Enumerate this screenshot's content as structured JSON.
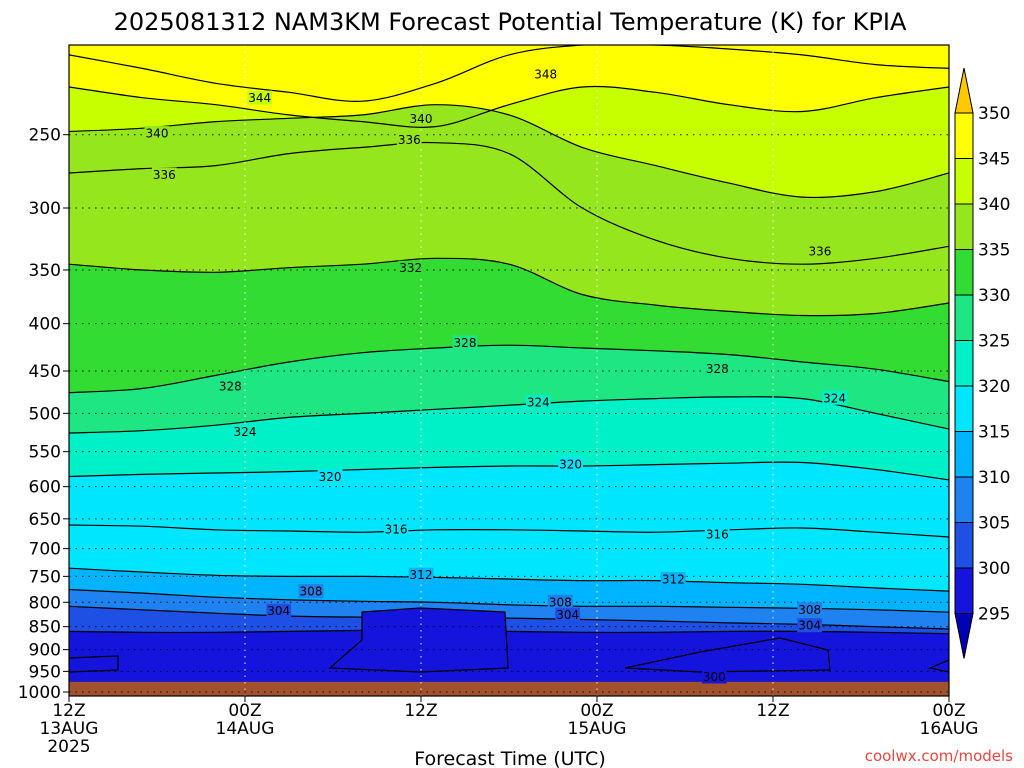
{
  "chart_data": {
    "type": "heatmap",
    "title": "2025081312 NAM3KM Forecast Potential Temperature (K) for KPIA",
    "xlabel": "Forecast Time (UTC)",
    "credit": "coolwx.com/models",
    "y_axis_reversed": true,
    "y_ticks": [
      "250",
      "300",
      "350",
      "400",
      "450",
      "500",
      "550",
      "600",
      "650",
      "700",
      "750",
      "800",
      "850",
      "900",
      "950",
      "1000"
    ],
    "y_tick_values": [
      250,
      300,
      350,
      400,
      450,
      500,
      550,
      600,
      650,
      700,
      750,
      800,
      850,
      900,
      950,
      1000
    ],
    "x_ticks": [
      {
        "hour": 0,
        "line1": "12Z",
        "line2": "13AUG",
        "line3": "2025"
      },
      {
        "hour": 12,
        "line1": "00Z",
        "line2": "14AUG",
        "line3": ""
      },
      {
        "hour": 24,
        "line1": "12Z",
        "line2": "",
        "line3": ""
      },
      {
        "hour": 36,
        "line1": "00Z",
        "line2": "15AUG",
        "line3": ""
      },
      {
        "hour": 48,
        "line1": "12Z",
        "line2": "",
        "line3": ""
      },
      {
        "hour": 60,
        "line1": "00Z",
        "line2": "16AUG",
        "line3": ""
      }
    ],
    "xlim_hours": [
      0,
      60
    ],
    "ylim_hpa": [
      200,
      1010
    ],
    "grid": true,
    "colorbar": {
      "labels": [
        "350",
        "345",
        "340",
        "335",
        "330",
        "325",
        "320",
        "315",
        "310",
        "305",
        "300",
        "295"
      ],
      "bins": [
        {
          "lo": 350,
          "hi": 355,
          "color": "#ffc800"
        },
        {
          "lo": 345,
          "hi": 350,
          "color": "#ffff00"
        },
        {
          "lo": 340,
          "hi": 345,
          "color": "#c8ff00"
        },
        {
          "lo": 335,
          "hi": 340,
          "color": "#96e61e"
        },
        {
          "lo": 330,
          "hi": 335,
          "color": "#32dc32"
        },
        {
          "lo": 325,
          "hi": 330,
          "color": "#1ee682"
        },
        {
          "lo": 320,
          "hi": 325,
          "color": "#00f0c8"
        },
        {
          "lo": 315,
          "hi": 320,
          "color": "#00e6ff"
        },
        {
          "lo": 310,
          "hi": 315,
          "color": "#00b4ff"
        },
        {
          "lo": 305,
          "hi": 310,
          "color": "#1e82f0"
        },
        {
          "lo": 300,
          "hi": 305,
          "color": "#1e50e6"
        },
        {
          "lo": 295,
          "hi": 300,
          "color": "#1414dc"
        },
        {
          "lo": 290,
          "hi": 295,
          "color": "#0000b4"
        }
      ]
    },
    "contour_interval_k": 2,
    "approx_isentropes": [
      {
        "theta": 348,
        "pressure_hpa": [
          205,
          212,
          220,
          225,
          230,
          220,
          205,
          200,
          200,
          202,
          205,
          210,
          212
        ]
      },
      {
        "theta": 344,
        "pressure_hpa": [
          222,
          228,
          232,
          238,
          242,
          245,
          232,
          222,
          225,
          232,
          236,
          228,
          222
        ]
      },
      {
        "theta": 340,
        "pressure_hpa": [
          248,
          246,
          242,
          240,
          238,
          232,
          238,
          258,
          270,
          282,
          292,
          288,
          275
        ]
      },
      {
        "theta": 336,
        "pressure_hpa": [
          275,
          272,
          270,
          262,
          258,
          255,
          262,
          300,
          325,
          340,
          345,
          340,
          330
        ]
      },
      {
        "theta": 332,
        "pressure_hpa": [
          345,
          350,
          352,
          348,
          345,
          340,
          345,
          372,
          382,
          388,
          392,
          390,
          380
        ]
      },
      {
        "theta": 328,
        "pressure_hpa": [
          475,
          470,
          455,
          440,
          430,
          425,
          422,
          425,
          428,
          432,
          440,
          448,
          462
        ]
      },
      {
        "theta": 324,
        "pressure_hpa": [
          525,
          522,
          515,
          505,
          500,
          495,
          490,
          485,
          482,
          480,
          482,
          500,
          520
        ]
      },
      {
        "theta": 320,
        "pressure_hpa": [
          585,
          582,
          580,
          578,
          575,
          572,
          570,
          570,
          568,
          566,
          565,
          575,
          590
        ]
      },
      {
        "theta": 316,
        "pressure_hpa": [
          660,
          662,
          668,
          670,
          672,
          668,
          668,
          670,
          672,
          668,
          665,
          672,
          680
        ]
      },
      {
        "theta": 312,
        "pressure_hpa": [
          735,
          742,
          748,
          750,
          750,
          752,
          755,
          758,
          758,
          762,
          765,
          772,
          778
        ]
      },
      {
        "theta": 308,
        "pressure_hpa": [
          775,
          782,
          790,
          795,
          798,
          800,
          805,
          808,
          808,
          810,
          812,
          815,
          820
        ]
      },
      {
        "theta": 304,
        "pressure_hpa": [
          808,
          815,
          822,
          828,
          830,
          830,
          832,
          835,
          838,
          842,
          845,
          850,
          855
        ]
      },
      {
        "theta": 300,
        "pressure_hpa": [
          860,
          862,
          862,
          860,
          858,
          858,
          860,
          862,
          862,
          860,
          860,
          862,
          865
        ]
      }
    ],
    "contour_labels": [
      {
        "text": "348",
        "hour": 32.5,
        "p": 215
      },
      {
        "text": "344",
        "hour": 13.0,
        "p": 228
      },
      {
        "text": "340",
        "hour": 24.0,
        "p": 240
      },
      {
        "text": "340",
        "hour": 6.0,
        "p": 249
      },
      {
        "text": "336",
        "hour": 23.2,
        "p": 253
      },
      {
        "text": "336",
        "hour": 6.5,
        "p": 276
      },
      {
        "text": "336",
        "hour": 51.2,
        "p": 334
      },
      {
        "text": "332",
        "hour": 23.3,
        "p": 348
      },
      {
        "text": "328",
        "hour": 27.0,
        "p": 419
      },
      {
        "text": "328",
        "hour": 11.0,
        "p": 467
      },
      {
        "text": "328",
        "hour": 44.2,
        "p": 447
      },
      {
        "text": "324",
        "hour": 32.0,
        "p": 486
      },
      {
        "text": "324",
        "hour": 52.2,
        "p": 481
      },
      {
        "text": "324",
        "hour": 12.0,
        "p": 523
      },
      {
        "text": "320",
        "hour": 17.8,
        "p": 585
      },
      {
        "text": "320",
        "hour": 34.2,
        "p": 567
      },
      {
        "text": "316",
        "hour": 22.3,
        "p": 667
      },
      {
        "text": "316",
        "hour": 44.2,
        "p": 675
      },
      {
        "text": "312",
        "hour": 24.0,
        "p": 747
      },
      {
        "text": "312",
        "hour": 41.2,
        "p": 755
      },
      {
        "text": "308",
        "hour": 16.5,
        "p": 778
      },
      {
        "text": "308",
        "hour": 33.5,
        "p": 799
      },
      {
        "text": "308",
        "hour": 50.5,
        "p": 814
      },
      {
        "text": "304",
        "hour": 14.3,
        "p": 817
      },
      {
        "text": "304",
        "hour": 34.0,
        "p": 825
      },
      {
        "text": "304",
        "hour": 50.5,
        "p": 847
      },
      {
        "text": "300",
        "hour": 44.0,
        "p": 962
      }
    ],
    "surface_fill_color": "#a0522d",
    "surface_pressure_hpa": 975
  }
}
